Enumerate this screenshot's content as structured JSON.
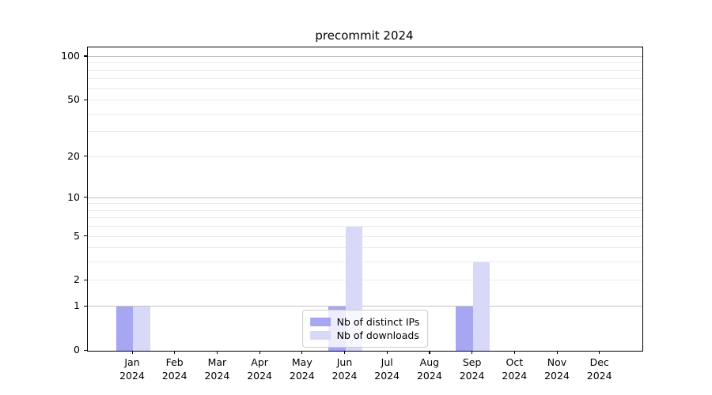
{
  "chart_data": {
    "type": "bar",
    "title": "precommit 2024",
    "x_year": "2024",
    "categories": [
      "Jan",
      "Feb",
      "Mar",
      "Apr",
      "May",
      "Jun",
      "Jul",
      "Aug",
      "Sep",
      "Oct",
      "Nov",
      "Dec"
    ],
    "series": [
      {
        "name": "Nb of distinct IPs",
        "color": "#a6a6f2",
        "values": [
          1,
          0,
          0,
          0,
          0,
          1,
          0,
          0,
          1,
          0,
          0,
          0
        ]
      },
      {
        "name": "Nb of downloads",
        "color": "#d8d8f8",
        "values": [
          1,
          0,
          0,
          0,
          0,
          6,
          0,
          0,
          3,
          0,
          0,
          0
        ]
      }
    ],
    "y_scale": "log1p",
    "ylim": [
      0,
      116
    ],
    "yticks": [
      0,
      1,
      2,
      5,
      10,
      20,
      50,
      100
    ],
    "grid": {
      "major": [
        1,
        10,
        100
      ],
      "minor": [
        2,
        3,
        4,
        5,
        6,
        7,
        8,
        9,
        20,
        30,
        40,
        50,
        60,
        70,
        80,
        90
      ]
    },
    "legend_position": "lower center",
    "xlabel": "",
    "ylabel": ""
  }
}
